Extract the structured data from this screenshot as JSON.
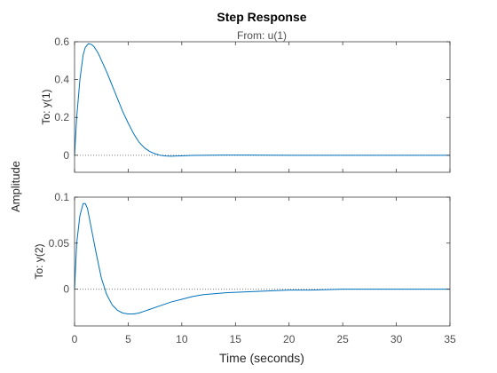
{
  "chart_data": {
    "type": "line",
    "title": "Step Response",
    "subtitle": "From: u(1)",
    "xlabel": "Time (seconds)",
    "ylabel": "Amplitude",
    "x_ticks": [
      0,
      5,
      10,
      15,
      20,
      25,
      30,
      35
    ],
    "xlim": [
      0,
      35
    ],
    "grid": false,
    "line_color": "#0072BD",
    "zero_line_color": "#808080",
    "subplots": [
      {
        "ylabel": "To: y(1)",
        "ylim": [
          -0.09,
          0.6
        ],
        "y_ticks": [
          0,
          0.2,
          0.4,
          0.6
        ],
        "y_tick_labels": [
          "0",
          "0.2",
          "0.4",
          "0.6"
        ],
        "series": [
          {
            "x": [
              0,
              0.2,
              0.5,
              0.8,
              1.0,
              1.3,
              1.6,
              1.8,
              2.2,
              2.6,
              3.0,
              3.5,
              4.0,
              4.5,
              5.0,
              5.5,
              6.0,
              6.5,
              7.0,
              7.5,
              8.0,
              8.5,
              9.0,
              9.5,
              10.0,
              11.0,
              12.0,
              14.0,
              16.0,
              20.0,
              25.0,
              30.0,
              35.0
            ],
            "y": [
              0,
              0.2,
              0.4,
              0.53,
              0.57,
              0.59,
              0.585,
              0.575,
              0.54,
              0.49,
              0.44,
              0.37,
              0.3,
              0.23,
              0.17,
              0.115,
              0.07,
              0.04,
              0.02,
              0.008,
              0.0,
              -0.004,
              -0.005,
              -0.004,
              -0.003,
              -0.001,
              0.0,
              0.001,
              0.001,
              0.0,
              0.0,
              0.0,
              0.0
            ]
          }
        ]
      },
      {
        "ylabel": "To: y(2)",
        "ylim": [
          -0.04,
          0.1
        ],
        "y_ticks": [
          0,
          0.05,
          0.1
        ],
        "y_tick_labels": [
          "0",
          "0.05",
          "0.1"
        ],
        "series": [
          {
            "x": [
              0,
              0.2,
              0.5,
              0.8,
              1.0,
              1.2,
              1.5,
              2.0,
              2.5,
              3.0,
              3.5,
              4.0,
              4.5,
              5.0,
              5.5,
              6.0,
              6.5,
              7.0,
              8.0,
              9.0,
              10.0,
              11.0,
              12.0,
              14.0,
              16.0,
              18.0,
              20.0,
              22.0,
              25.0,
              30.0,
              35.0
            ],
            "y": [
              0,
              0.05,
              0.08,
              0.093,
              0.093,
              0.088,
              0.07,
              0.04,
              0.012,
              -0.006,
              -0.017,
              -0.023,
              -0.026,
              -0.027,
              -0.027,
              -0.026,
              -0.024,
              -0.022,
              -0.018,
              -0.014,
              -0.011,
              -0.008,
              -0.006,
              -0.004,
              -0.003,
              -0.002,
              -0.001,
              -0.001,
              0.0,
              0.0,
              0.0
            ]
          }
        ]
      }
    ]
  }
}
